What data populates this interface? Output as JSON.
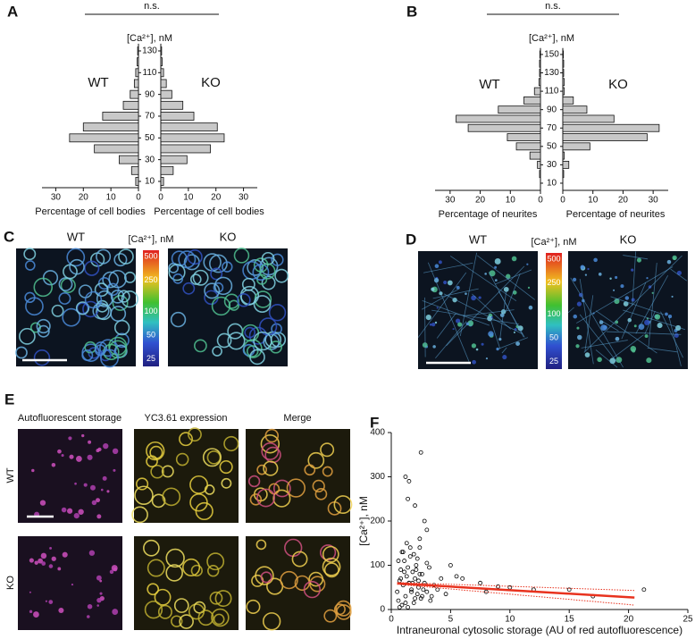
{
  "chart_data": [
    {
      "type": "pyramid",
      "panel": "A",
      "title": "n.s.",
      "y_label": "[Ca²⁺], nM",
      "x_label_left": "Percentage of cell bodies",
      "x_label_right": "Percentage of cell bodies",
      "categories": [
        10,
        20,
        30,
        40,
        50,
        60,
        70,
        80,
        90,
        100,
        110,
        120,
        130
      ],
      "series": [
        {
          "name": "WT",
          "color": "#c8c8c8",
          "values": [
            1,
            2.5,
            7,
            16,
            25,
            20,
            13,
            5.5,
            3,
            1.5,
            1,
            0.5,
            0.3
          ]
        },
        {
          "name": "KO",
          "color": "#c8c8c8",
          "values": [
            1,
            4.5,
            9.5,
            18,
            23,
            20.5,
            12,
            8,
            4,
            2,
            1,
            0.5,
            0.3
          ]
        }
      ],
      "xlim": [
        0,
        35
      ],
      "xticks": [
        0,
        10,
        20,
        30
      ],
      "ylim": [
        2,
        135
      ],
      "yticks": [
        10,
        30,
        50,
        70,
        90,
        110,
        130
      ]
    },
    {
      "type": "pyramid",
      "panel": "B",
      "title": "n.s.",
      "y_label": "[Ca²⁺], nM",
      "x_label_left": "Percentage of neurites",
      "x_label_right": "Percentage of neurites",
      "categories": [
        10,
        20,
        30,
        40,
        50,
        60,
        70,
        80,
        90,
        100,
        110,
        120,
        130,
        140,
        150
      ],
      "series": [
        {
          "name": "WT",
          "color": "#c8c8c8",
          "values": [
            0,
            0.3,
            1,
            3.5,
            8,
            11,
            24,
            28,
            14,
            5.5,
            2,
            0.5,
            0.3,
            0.3,
            0.2
          ]
        },
        {
          "name": "KO",
          "color": "#c8c8c8",
          "values": [
            0,
            0.3,
            2,
            0.5,
            9,
            28,
            32,
            17,
            8,
            3.5,
            0.5,
            0.5,
            0.3,
            0.3,
            0.2
          ]
        }
      ],
      "xlim": [
        0,
        35
      ],
      "xticks": [
        0,
        10,
        20,
        30
      ],
      "ylim": [
        2,
        155
      ],
      "yticks": [
        10,
        30,
        50,
        70,
        90,
        110,
        130,
        150
      ]
    },
    {
      "type": "scatter",
      "panel": "F",
      "y_label": "[Ca²⁺], nM",
      "x_label": "Intraneuronal cytosolic storage (AU of red autofluorescence)",
      "color": "#000000",
      "x": [
        0.5,
        0.6,
        0.7,
        0.8,
        0.9,
        1.0,
        1.1,
        1.2,
        1.3,
        1.4,
        1.5,
        1.6,
        1.7,
        1.8,
        1.9,
        2.0,
        2.1,
        2.2,
        2.3,
        2.4,
        2.5,
        2.6,
        2.8,
        3.0,
        3.2,
        3.4,
        3.6,
        3.9,
        4.2,
        4.6,
        0.6,
        0.8,
        1.0,
        1.2,
        1.4,
        1.6,
        1.8,
        2.0,
        2.2,
        2.4,
        2.7,
        3.0,
        3.3,
        0.7,
        0.9,
        1.1,
        1.3,
        1.5,
        1.7,
        1.9,
        2.1,
        2.3,
        2.6,
        1.2,
        1.5,
        1.4,
        2.0,
        2.5,
        2.8,
        3.0,
        2.4,
        5.0,
        6.0,
        7.5,
        9.0,
        10.0,
        12.0,
        15.0,
        17.0,
        21.3,
        5.5,
        8.0
      ],
      "y": [
        40,
        20,
        65,
        90,
        10,
        55,
        110,
        30,
        75,
        5,
        60,
        120,
        45,
        85,
        15,
        70,
        100,
        35,
        50,
        140,
        25,
        80,
        60,
        40,
        95,
        30,
        55,
        45,
        70,
        35,
        110,
        70,
        130,
        15,
        95,
        140,
        60,
        25,
        115,
        80,
        45,
        105,
        20,
        5,
        130,
        85,
        150,
        60,
        40,
        125,
        90,
        65,
        30,
        300,
        290,
        250,
        235,
        355,
        200,
        180,
        160,
        100,
        70,
        60,
        52,
        50,
        45,
        45,
        30,
        45,
        75,
        40
      ],
      "lines": [
        {
          "x": [
            0.5,
            20.5
          ],
          "y": [
            59,
            27
          ],
          "color": "#e8321e",
          "style": "solid"
        },
        {
          "x": [
            0.5,
            20.5
          ],
          "y": [
            61,
            43
          ],
          "color": "#e8321e",
          "style": "dotted"
        },
        {
          "x": [
            0.5,
            20.5
          ],
          "y": [
            57,
            10
          ],
          "color": "#e8321e",
          "style": "dotted"
        }
      ],
      "xlim": [
        0,
        25
      ],
      "xticks": [
        0,
        5,
        10,
        15,
        20,
        25
      ],
      "ylim": [
        0,
        400
      ],
      "yticks": [
        0,
        100,
        200,
        300,
        400
      ]
    }
  ],
  "images": {
    "C": {
      "panel": "C",
      "left": "WT",
      "right": "KO",
      "colorbar_label": "[Ca²⁺], nM",
      "colorbar_ticks": [
        500,
        250,
        100,
        50,
        25
      ],
      "colorbar_range": [
        20,
        600
      ],
      "log": true
    },
    "D": {
      "panel": "D",
      "left": "WT",
      "right": "KO",
      "colorbar_label": "[Ca²⁺], nM",
      "colorbar_ticks": [
        500,
        250,
        100,
        50,
        25
      ],
      "colorbar_range": [
        20,
        600
      ],
      "log": true
    },
    "E": {
      "panel": "E",
      "columns": [
        "Autofluorescent storage",
        "YC3.61 expression",
        "Merge"
      ],
      "rows": [
        "WT",
        "KO"
      ]
    }
  }
}
